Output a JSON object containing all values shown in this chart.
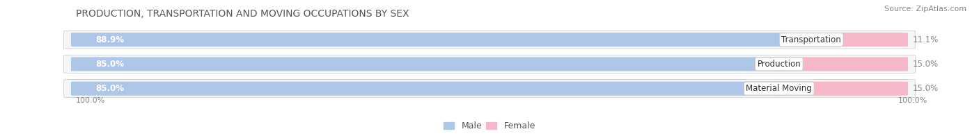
{
  "title": "PRODUCTION, TRANSPORTATION AND MOVING OCCUPATIONS BY SEX",
  "source": "Source: ZipAtlas.com",
  "categories": [
    "Transportation",
    "Production",
    "Material Moving"
  ],
  "male_pct": [
    88.9,
    85.0,
    85.0
  ],
  "female_pct": [
    11.1,
    15.0,
    15.0
  ],
  "male_color": "#aec6e8",
  "female_color": "#f08080",
  "female_light_color": "#f4b8c8",
  "bar_bg_color": "#f0f0f0",
  "label_bg_color": "#ffffff",
  "title_fontsize": 10,
  "bar_label_fontsize": 8.5,
  "axis_label_fontsize": 8,
  "legend_fontsize": 9,
  "source_fontsize": 8,
  "left_label": "100.0%",
  "right_label": "100.0%",
  "background_color": "#ffffff",
  "bar_row_bg": "#f5f5f5"
}
